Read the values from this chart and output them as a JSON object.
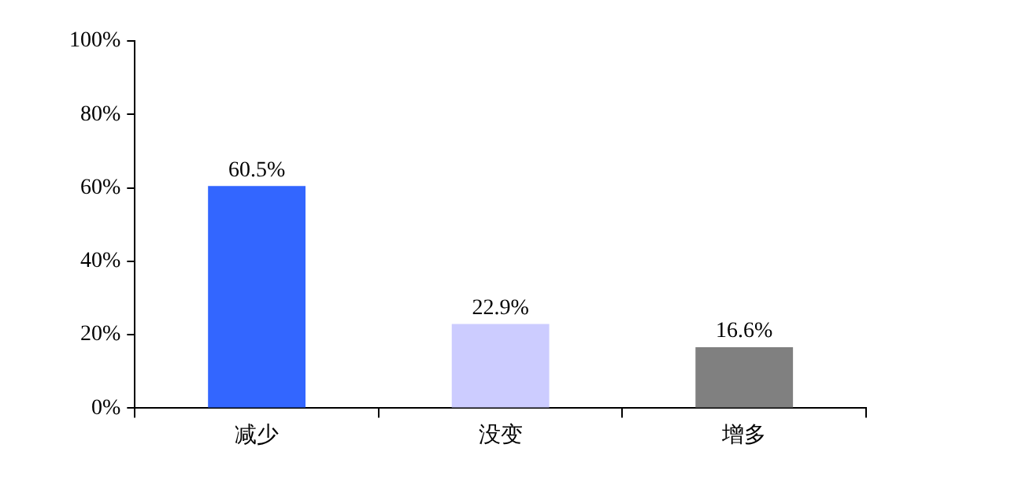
{
  "chart_data": {
    "type": "bar",
    "categories": [
      "减少",
      "没变",
      "增多"
    ],
    "values": [
      60.5,
      22.9,
      16.6
    ],
    "colors": [
      "#3366ff",
      "#ccccff",
      "#808080"
    ],
    "value_labels": [
      "60.5%",
      "22.9%",
      "16.6%"
    ],
    "ylim": [
      0,
      100
    ],
    "yticks": [
      {
        "value": 0,
        "label": "0%"
      },
      {
        "value": 20,
        "label": "20%"
      },
      {
        "value": 40,
        "label": "40%"
      },
      {
        "value": 60,
        "label": "60%"
      },
      {
        "value": 80,
        "label": "80%"
      },
      {
        "value": 100,
        "label": "100%"
      }
    ],
    "grid": false,
    "legend": false
  }
}
